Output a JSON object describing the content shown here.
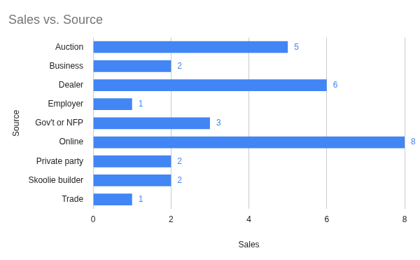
{
  "chart_data": {
    "type": "bar",
    "title": "Sales vs. Source",
    "xlabel": "Sales",
    "ylabel": "Source",
    "categories": [
      "Auction",
      "Business",
      "Dealer",
      "Employer",
      "Gov't or NFP",
      "Online",
      "Private party",
      "Skoolie builder",
      "Trade"
    ],
    "values": [
      5,
      2,
      6,
      1,
      3,
      8,
      2,
      2,
      1
    ],
    "color": "#4285f4",
    "orientation": "horizontal",
    "xlim": [
      0,
      8
    ],
    "xticks": [
      0,
      2,
      4,
      6,
      8
    ],
    "grid": true,
    "data_labels": true
  }
}
